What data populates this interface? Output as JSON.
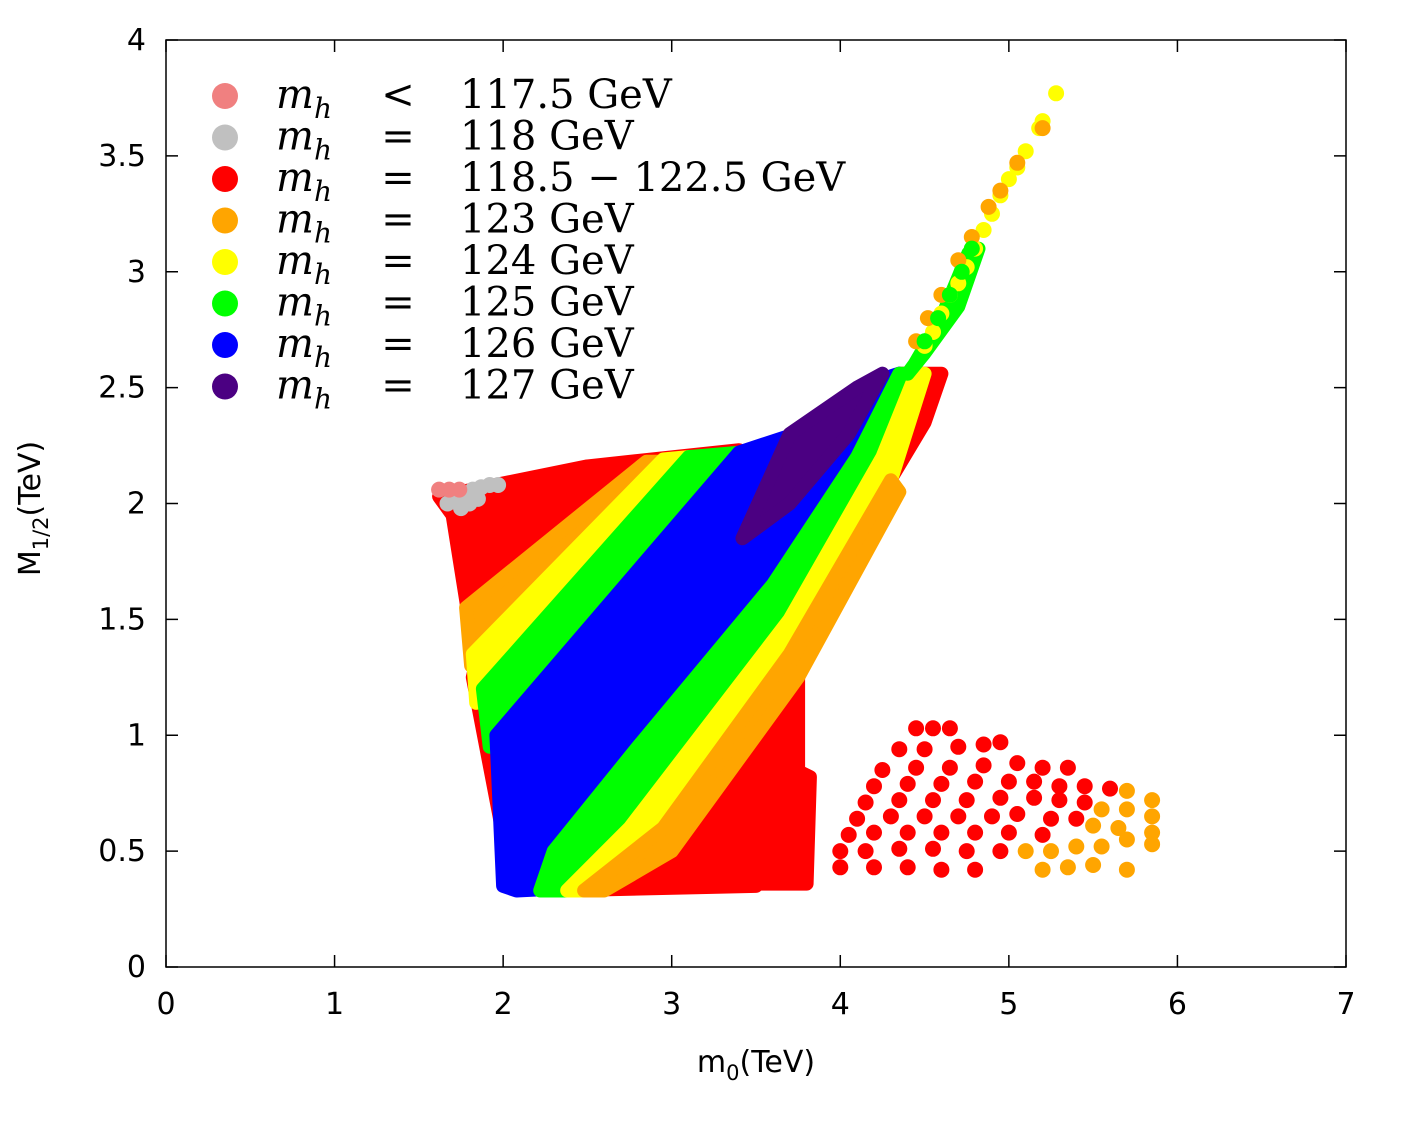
{
  "chart_data": {
    "type": "scatter",
    "title": "",
    "xlabel": {
      "base": "m",
      "sub": "0",
      "unit": "(TeV)"
    },
    "ylabel": {
      "base": "M",
      "sub": "1/2",
      "unit": "(TeV)"
    },
    "xlim": [
      0,
      7
    ],
    "ylim": [
      0,
      4
    ],
    "xticks": [
      0,
      1,
      2,
      3,
      4,
      5,
      6,
      7
    ],
    "xtick_labels": [
      "0",
      "1",
      "2",
      "3",
      "4",
      "5",
      "6",
      "7"
    ],
    "yticks": [
      0,
      0.5,
      1,
      1.5,
      2,
      2.5,
      3,
      3.5,
      4
    ],
    "ytick_labels": [
      "0",
      "0.5",
      "1",
      "1.5",
      "2",
      "2.5",
      "3",
      "3.5",
      "4"
    ],
    "grid": false,
    "legend_position": "top-left",
    "legend": [
      {
        "var": "m",
        "sub": "h",
        "rel": "<",
        "value": "117.5 GeV",
        "color": "#f08080"
      },
      {
        "var": "m",
        "sub": "h",
        "rel": "=",
        "value": "118 GeV",
        "color": "#c0c0c0"
      },
      {
        "var": "m",
        "sub": "h",
        "rel": "=",
        "value": "118.5 − 122.5 GeV",
        "color": "#ff0000"
      },
      {
        "var": "m",
        "sub": "h",
        "rel": "=",
        "value": "123 GeV",
        "color": "#ffa500"
      },
      {
        "var": "m",
        "sub": "h",
        "rel": "=",
        "value": "124 GeV",
        "color": "#ffff00"
      },
      {
        "var": "m",
        "sub": "h",
        "rel": "=",
        "value": "125 GeV",
        "color": "#00ff00"
      },
      {
        "var": "m",
        "sub": "h",
        "rel": "=",
        "value": "126 GeV",
        "color": "#0000ff"
      },
      {
        "var": "m",
        "sub": "h",
        "rel": "=",
        "value": "127 GeV",
        "color": "#4b0082"
      }
    ],
    "regions": [
      {
        "name": "red-main",
        "color": "#ff0000",
        "polygon": [
          [
            1.62,
            2.03
          ],
          [
            2.5,
            2.16
          ],
          [
            3.4,
            2.23
          ],
          [
            2.2,
            1.6
          ],
          [
            1.9,
            1.5
          ],
          [
            1.82,
            1.25
          ],
          [
            2.05,
            0.38
          ],
          [
            2.3,
            0.33
          ],
          [
            3.5,
            0.35
          ],
          [
            3.75,
            0.6
          ],
          [
            3.75,
            1.4
          ],
          [
            3.5,
            1.9
          ],
          [
            4.05,
            2.2
          ],
          [
            4.35,
            2.56
          ],
          [
            4.6,
            2.56
          ],
          [
            4.5,
            2.35
          ],
          [
            3.8,
            1.5
          ],
          [
            3.7,
            1.6
          ],
          [
            2.6,
            0.35
          ],
          [
            2.05,
            0.35
          ],
          [
            1.7,
            1.95
          ]
        ]
      },
      {
        "name": "red-island",
        "color": "#ff0000",
        "polygon": [
          [
            2.55,
            0.36
          ],
          [
            3.8,
            0.36
          ],
          [
            3.82,
            0.82
          ],
          [
            3.65,
            0.88
          ],
          [
            3.3,
            0.65
          ],
          [
            3.05,
            0.66
          ],
          [
            2.8,
            0.5
          ]
        ]
      },
      {
        "name": "orange-band",
        "color": "#ffa500",
        "polygon": [
          [
            1.78,
            1.55
          ],
          [
            2.85,
            2.18
          ],
          [
            2.95,
            2.18
          ],
          [
            1.86,
            1.32
          ],
          [
            1.81,
            1.3
          ]
        ]
      },
      {
        "name": "yellow-band",
        "color": "#ffff00",
        "polygon": [
          [
            1.82,
            1.35
          ],
          [
            2.95,
            2.19
          ],
          [
            3.1,
            2.2
          ],
          [
            1.9,
            1.15
          ],
          [
            1.84,
            1.14
          ]
        ]
      },
      {
        "name": "green-band-upper",
        "color": "#00ff00",
        "polygon": [
          [
            1.88,
            1.2
          ],
          [
            3.1,
            2.2
          ],
          [
            3.42,
            2.22
          ],
          [
            1.98,
            0.95
          ],
          [
            1.92,
            0.95
          ]
        ]
      },
      {
        "name": "blue-band",
        "color": "#0000ff",
        "polygon": [
          [
            1.96,
            1.0
          ],
          [
            3.4,
            2.22
          ],
          [
            3.82,
            2.32
          ],
          [
            4.18,
            2.52
          ],
          [
            4.35,
            2.56
          ],
          [
            4.2,
            2.4
          ],
          [
            3.85,
            1.95
          ],
          [
            2.8,
            0.7
          ],
          [
            2.35,
            0.34
          ],
          [
            2.08,
            0.33
          ],
          [
            2.0,
            0.35
          ]
        ]
      },
      {
        "name": "indigo-band",
        "color": "#4b0082",
        "polygon": [
          [
            3.42,
            1.85
          ],
          [
            3.7,
            2.3
          ],
          [
            4.1,
            2.5
          ],
          [
            4.25,
            2.56
          ],
          [
            4.05,
            2.3
          ],
          [
            3.7,
            2.0
          ]
        ]
      },
      {
        "name": "green-band-lower",
        "color": "#00ff00",
        "polygon": [
          [
            2.22,
            0.33
          ],
          [
            2.3,
            0.5
          ],
          [
            2.8,
            0.95
          ],
          [
            3.6,
            1.65
          ],
          [
            4.1,
            2.2
          ],
          [
            4.35,
            2.56
          ],
          [
            4.45,
            2.56
          ],
          [
            4.25,
            2.2
          ],
          [
            3.6,
            1.4
          ],
          [
            2.7,
            0.55
          ],
          [
            2.42,
            0.33
          ]
        ]
      },
      {
        "name": "yellow-band-lower",
        "color": "#ffff00",
        "polygon": [
          [
            2.38,
            0.33
          ],
          [
            2.75,
            0.6
          ],
          [
            3.7,
            1.5
          ],
          [
            4.25,
            2.2
          ],
          [
            4.45,
            2.56
          ],
          [
            4.5,
            2.56
          ],
          [
            4.3,
            2.1
          ],
          [
            3.7,
            1.35
          ],
          [
            2.9,
            0.55
          ],
          [
            2.5,
            0.33
          ]
        ]
      },
      {
        "name": "orange-band-lower",
        "color": "#ffa500",
        "polygon": [
          [
            2.48,
            0.33
          ],
          [
            2.95,
            0.6
          ],
          [
            3.7,
            1.35
          ],
          [
            4.3,
            2.1
          ],
          [
            4.35,
            2.05
          ],
          [
            3.75,
            1.25
          ],
          [
            3.0,
            0.5
          ],
          [
            2.6,
            0.33
          ]
        ]
      },
      {
        "name": "green-strip-high",
        "color": "#00ff00",
        "polygon": [
          [
            4.4,
            2.56
          ],
          [
            4.5,
            2.65
          ],
          [
            4.7,
            2.85
          ],
          [
            4.82,
            3.1
          ],
          [
            4.76,
            3.08
          ],
          [
            4.6,
            2.8
          ],
          [
            4.44,
            2.6
          ]
        ]
      }
    ],
    "point_groups": [
      {
        "name": "red-dots",
        "color": "#ff0000",
        "x": [
          4.45,
          4.55,
          4.65,
          4.35,
          4.5,
          4.7,
          4.85,
          4.95,
          4.25,
          4.45,
          4.65,
          4.85,
          5.05,
          5.2,
          5.35,
          4.2,
          4.4,
          4.6,
          4.8,
          5.0,
          5.15,
          5.3,
          5.45,
          5.6,
          4.15,
          4.35,
          4.55,
          4.75,
          4.95,
          5.15,
          5.3,
          5.45,
          4.1,
          4.3,
          4.5,
          4.7,
          4.9,
          5.05,
          5.25,
          5.4,
          4.05,
          4.2,
          4.4,
          4.6,
          4.8,
          5.0,
          5.2,
          4.0,
          4.15,
          4.35,
          4.55,
          4.75,
          4.95,
          4.0,
          4.2,
          4.4,
          4.6,
          4.8
        ],
        "y": [
          1.03,
          1.03,
          1.03,
          0.94,
          0.94,
          0.95,
          0.96,
          0.97,
          0.85,
          0.86,
          0.86,
          0.87,
          0.88,
          0.86,
          0.86,
          0.78,
          0.79,
          0.79,
          0.8,
          0.8,
          0.8,
          0.78,
          0.78,
          0.77,
          0.71,
          0.72,
          0.72,
          0.72,
          0.73,
          0.73,
          0.72,
          0.71,
          0.64,
          0.65,
          0.65,
          0.65,
          0.65,
          0.66,
          0.64,
          0.64,
          0.57,
          0.58,
          0.58,
          0.58,
          0.58,
          0.58,
          0.57,
          0.5,
          0.5,
          0.51,
          0.51,
          0.5,
          0.5,
          0.43,
          0.43,
          0.43,
          0.42,
          0.42
        ]
      },
      {
        "name": "orange-dots",
        "color": "#ffa500",
        "x": [
          5.7,
          5.85,
          5.55,
          5.7,
          5.85,
          5.5,
          5.65,
          5.85,
          5.1,
          5.25,
          5.4,
          5.55,
          5.7,
          5.85,
          5.2,
          5.35,
          5.5,
          5.7
        ],
        "y": [
          0.76,
          0.72,
          0.68,
          0.68,
          0.65,
          0.61,
          0.6,
          0.58,
          0.5,
          0.5,
          0.52,
          0.52,
          0.55,
          0.53,
          0.42,
          0.43,
          0.44,
          0.42
        ]
      },
      {
        "name": "yellow-dots",
        "color": "#ffff00",
        "x": [
          5.28,
          5.2,
          5.18,
          5.1,
          5.05,
          5.0,
          4.95,
          4.9,
          4.85,
          4.8,
          4.75,
          4.7,
          4.65,
          4.6,
          4.55,
          4.5
        ],
        "y": [
          3.77,
          3.65,
          3.62,
          3.52,
          3.45,
          3.4,
          3.33,
          3.25,
          3.18,
          3.1,
          3.02,
          2.95,
          2.9,
          2.82,
          2.74,
          2.68
        ]
      },
      {
        "name": "orange-dots-strip",
        "color": "#ffa500",
        "x": [
          5.2,
          5.05,
          4.95,
          4.88,
          4.78,
          4.7,
          4.6,
          4.52,
          4.45
        ],
        "y": [
          3.62,
          3.47,
          3.35,
          3.28,
          3.15,
          3.05,
          2.9,
          2.8,
          2.7
        ]
      },
      {
        "name": "green-dots-strip",
        "color": "#00ff00",
        "x": [
          4.78,
          4.72,
          4.65,
          4.58,
          4.5
        ],
        "y": [
          3.1,
          3.0,
          2.9,
          2.8,
          2.7
        ]
      },
      {
        "name": "grey-dots",
        "color": "#c0c0c0",
        "x": [
          1.67,
          1.72,
          1.77,
          1.82,
          1.87,
          1.92,
          1.97,
          1.75,
          1.8,
          1.85
        ],
        "y": [
          2.0,
          2.02,
          2.04,
          2.06,
          2.07,
          2.08,
          2.08,
          1.98,
          2.0,
          2.02
        ]
      },
      {
        "name": "salmon-dots",
        "color": "#f08080",
        "x": [
          1.62,
          1.68,
          1.74
        ],
        "y": [
          2.06,
          2.06,
          2.06
        ]
      }
    ]
  }
}
